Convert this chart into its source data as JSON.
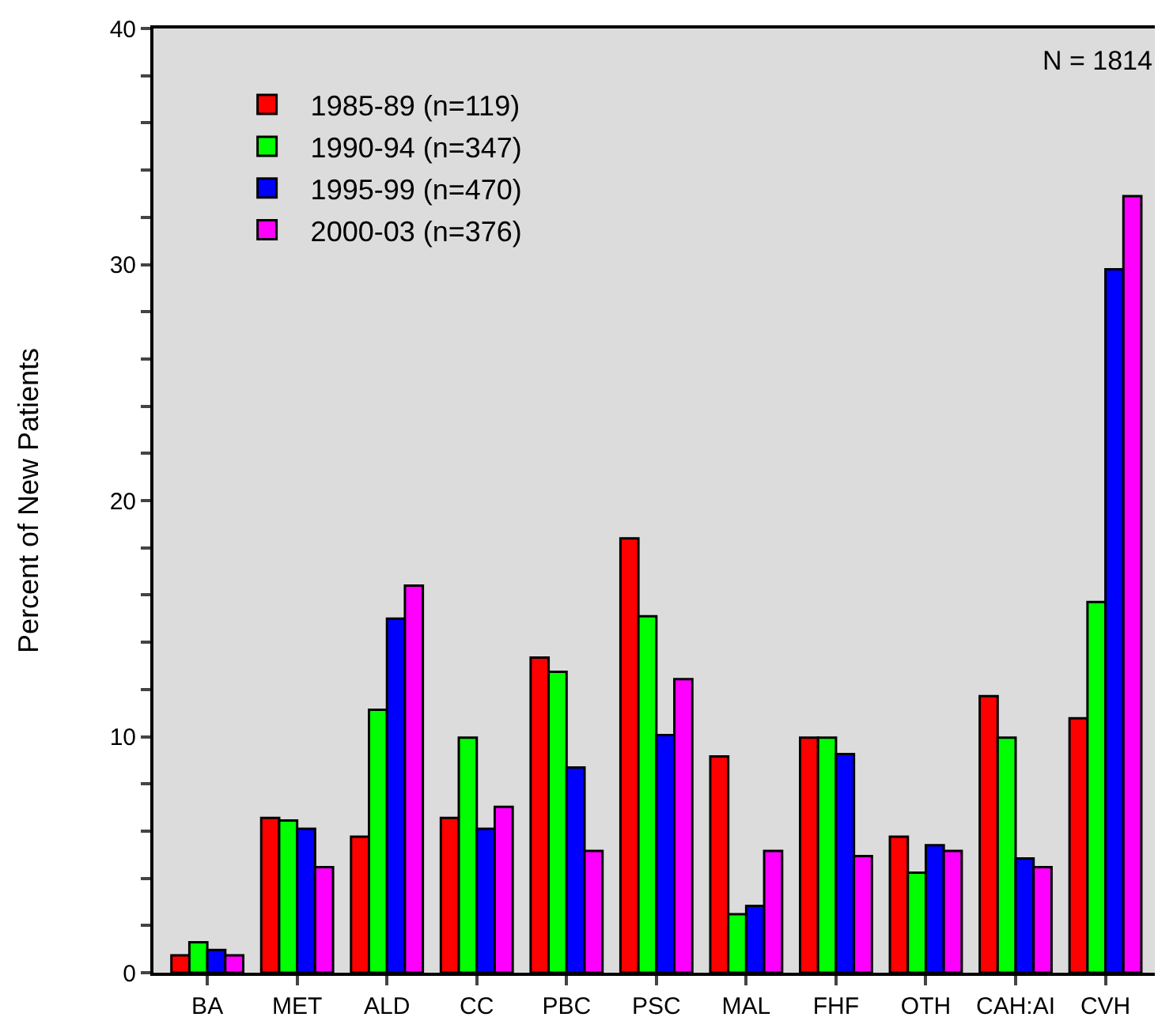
{
  "chart_data": {
    "type": "bar",
    "ylabel": "Percent of New Patients",
    "categories": [
      "BA",
      "MET",
      "ALD",
      "CC",
      "PBC",
      "PSC",
      "MAL",
      "FHF",
      "OTH",
      "CAH:AI",
      "CVH"
    ],
    "series": [
      {
        "name": "1985-89 (n=119)",
        "color": "#ff0000",
        "values": [
          0.74,
          6.56,
          5.76,
          6.56,
          13.35,
          18.4,
          9.16,
          9.96,
          5.76,
          11.72,
          10.78
        ]
      },
      {
        "name": "1990-94 (n=347)",
        "color": "#00ff00",
        "values": [
          1.29,
          6.45,
          11.14,
          9.96,
          12.75,
          15.1,
          2.48,
          9.96,
          4.24,
          9.96,
          15.7
        ]
      },
      {
        "name": "1995-99 (n=470)",
        "color": "#0000ff",
        "values": [
          0.96,
          6.1,
          15.0,
          6.1,
          8.69,
          10.07,
          2.83,
          9.26,
          5.4,
          4.84,
          29.8
        ]
      },
      {
        "name": "2000-03 (n=376)",
        "color": "#ff00ff",
        "values": [
          0.74,
          4.47,
          16.4,
          7.03,
          5.16,
          12.44,
          5.16,
          4.94,
          5.16,
          4.47,
          32.9
        ]
      }
    ],
    "ylim": [
      0,
      40
    ],
    "yticks": [
      0,
      {
        "value": 2,
        "label": null
      },
      {
        "value": 4,
        "label": null
      },
      {
        "value": 6,
        "label": null
      },
      {
        "value": 8,
        "label": null
      },
      10,
      {
        "value": 12,
        "label": null
      },
      {
        "value": 14,
        "label": null
      },
      {
        "value": 16,
        "label": null
      },
      {
        "value": 18,
        "label": null
      },
      20,
      {
        "value": 22,
        "label": null
      },
      {
        "value": 24,
        "label": null
      },
      {
        "value": 26,
        "label": null
      },
      {
        "value": 28,
        "label": null
      },
      30,
      {
        "value": 32,
        "label": null
      },
      {
        "value": 34,
        "label": null
      },
      {
        "value": 36,
        "label": null
      },
      {
        "value": 38,
        "label": null
      },
      40
    ],
    "annotations": [
      "N = 1814"
    ],
    "grid": false,
    "legend": "top left"
  }
}
